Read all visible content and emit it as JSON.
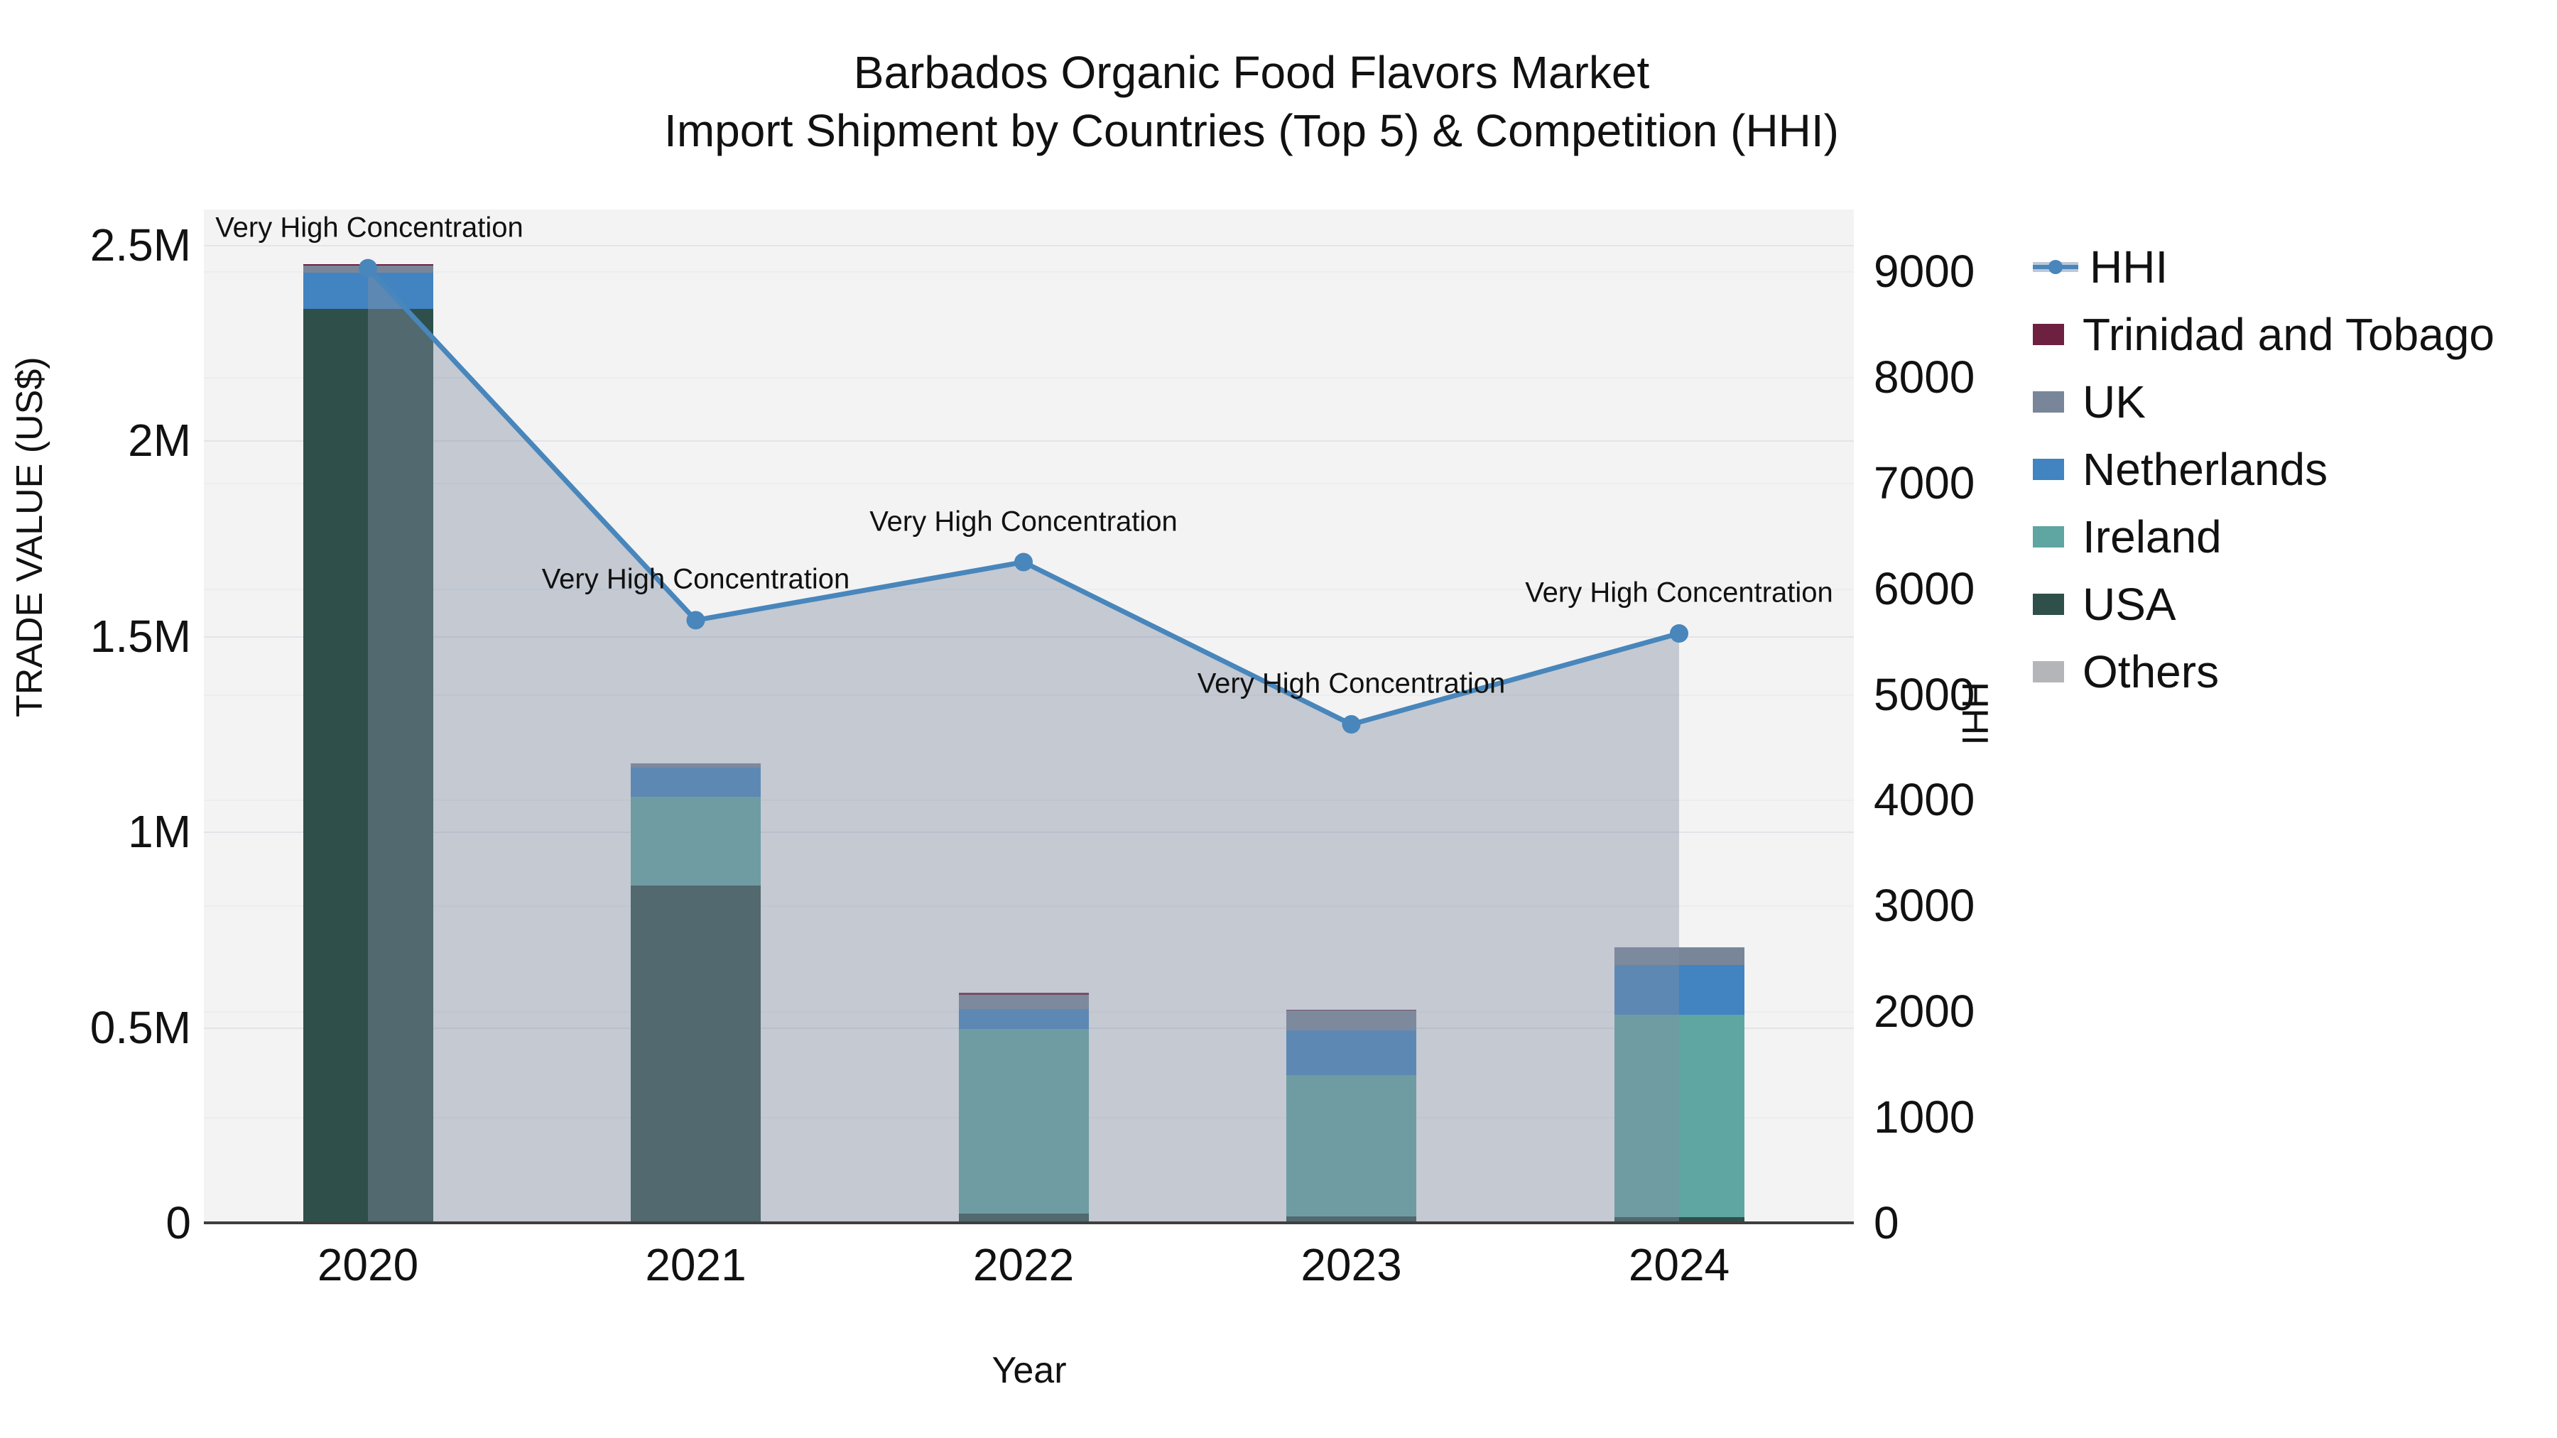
{
  "title": {
    "line1": "Barbados Organic Food Flavors Market",
    "line2": "Import Shipment by Countries (Top 5) & Competition (HHI)"
  },
  "axes": {
    "left": {
      "title": "TRADE VALUE (US$)",
      "tick_labels": [
        "0",
        "0.5M",
        "1M",
        "1.5M",
        "2M",
        "2.5M"
      ],
      "tick_values": [
        0,
        500000,
        1000000,
        1500000,
        2000000,
        2500000
      ],
      "range": [
        0,
        2590000
      ]
    },
    "right": {
      "title": "HHI",
      "tick_labels": [
        "0",
        "1000",
        "2000",
        "3000",
        "4000",
        "5000",
        "6000",
        "7000",
        "8000",
        "9000"
      ],
      "tick_values": [
        0,
        1000,
        2000,
        3000,
        4000,
        5000,
        6000,
        7000,
        8000,
        9000
      ],
      "range": [
        0,
        9585
      ]
    },
    "x": {
      "title": "Year"
    }
  },
  "annotation_text": "Very High Concentration",
  "legend": [
    {
      "label": "HHI",
      "type": "line",
      "color": "#4886bb"
    },
    {
      "label": "Trinidad and Tobago",
      "type": "swatch",
      "color": "#6e2040"
    },
    {
      "label": "UK",
      "type": "swatch",
      "color": "#798699"
    },
    {
      "label": "Netherlands",
      "type": "swatch",
      "color": "#4283c1"
    },
    {
      "label": "Ireland",
      "type": "swatch",
      "color": "#5fa5a2"
    },
    {
      "label": "USA",
      "type": "swatch",
      "color": "#2e4f4a"
    },
    {
      "label": "Others",
      "type": "swatch",
      "color": "#b3b5b8"
    }
  ],
  "chart_data": {
    "type": "bar",
    "subtype": "stacked-bar-with-line",
    "categories": [
      "2020",
      "2021",
      "2022",
      "2023",
      "2024"
    ],
    "bar_series_bottom_to_top": [
      {
        "name": "USA",
        "color": "#2e4f4a",
        "values": [
          2335000,
          862000,
          24000,
          16000,
          15000
        ]
      },
      {
        "name": "Ireland",
        "color": "#5fa5a2",
        "values": [
          0,
          227000,
          472000,
          361000,
          517000
        ]
      },
      {
        "name": "Netherlands",
        "color": "#4283c1",
        "values": [
          94000,
          74000,
          51000,
          114000,
          127000
        ]
      },
      {
        "name": "UK",
        "color": "#798699",
        "values": [
          17000,
          12000,
          36000,
          51000,
          45000
        ]
      },
      {
        "name": "Trinidad and Tobago",
        "color": "#6e2040",
        "values": [
          4000,
          0,
          5000,
          3000,
          0
        ]
      },
      {
        "name": "Others",
        "color": "#b3b5b8",
        "values": [
          0,
          0,
          0,
          0,
          0
        ]
      }
    ],
    "bar_totals": [
      2450000,
      1175000,
      588000,
      545000,
      704000
    ],
    "line_series": {
      "name": "HHI",
      "axis": "right",
      "color": "#4886bb",
      "area_fill": "rgba(130,142,163,0.42)",
      "values": [
        9030,
        5700,
        6250,
        4715,
        5575
      ],
      "point_annotations": [
        "Very High Concentration",
        "Very High Concentration",
        "Very High Concentration",
        "Very High Concentration",
        "Very High Concentration"
      ]
    },
    "title": "Barbados Organic Food Flavors Market — Import Shipment by Countries (Top 5) & Competition (HHI)",
    "xlabel": "Year",
    "ylabel_left": "TRADE VALUE (US$)",
    "ylabel_right": "HHI",
    "ylim_left": [
      0,
      2590000
    ],
    "ylim_right": [
      0,
      9585
    ],
    "grid": true,
    "legend_position": "right"
  },
  "colors": {
    "plot_background": "#f3f3f4",
    "page_background": "#ffffff",
    "axis_line": "#3f3f3f",
    "gridline_left": "#e2e4e8",
    "gridline_right": "#ebedef",
    "hhi_legend_band": "#bcc7d6",
    "text": "#111111"
  }
}
